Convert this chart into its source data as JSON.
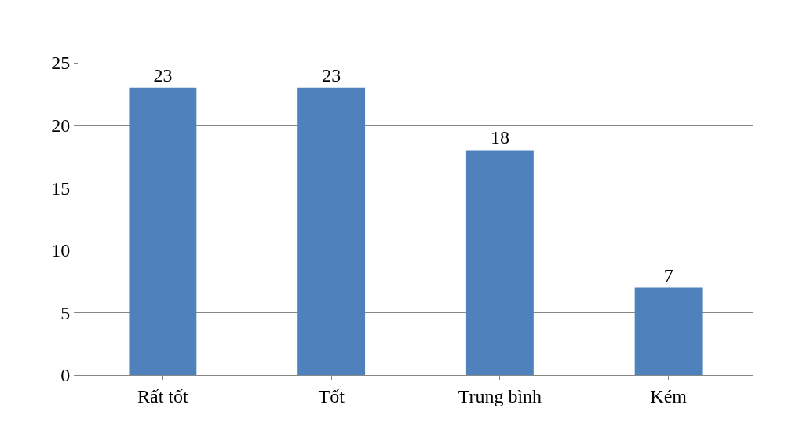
{
  "chart_data": {
    "type": "bar",
    "categories": [
      "Rất tốt",
      "Tốt",
      "Trung bình",
      "Kém"
    ],
    "values": [
      23,
      23,
      18,
      7
    ],
    "color": "#4f81bd",
    "ylim": [
      0,
      25
    ],
    "yticks": [
      0,
      5,
      10,
      15,
      20,
      25
    ],
    "grid": "y",
    "data_labels": true
  }
}
